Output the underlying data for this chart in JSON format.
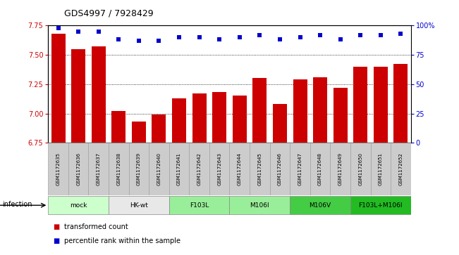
{
  "title": "GDS4997 / 7928429",
  "samples": [
    "GSM1172635",
    "GSM1172636",
    "GSM1172637",
    "GSM1172638",
    "GSM1172639",
    "GSM1172640",
    "GSM1172641",
    "GSM1172642",
    "GSM1172643",
    "GSM1172644",
    "GSM1172645",
    "GSM1172646",
    "GSM1172647",
    "GSM1172648",
    "GSM1172649",
    "GSM1172650",
    "GSM1172651",
    "GSM1172652"
  ],
  "bar_values": [
    7.68,
    7.55,
    7.57,
    7.02,
    6.93,
    6.99,
    7.13,
    7.17,
    7.18,
    7.15,
    7.3,
    7.08,
    7.29,
    7.31,
    7.22,
    7.4,
    7.4,
    7.42
  ],
  "percentile_values": [
    98,
    95,
    95,
    88,
    87,
    87,
    90,
    90,
    88,
    90,
    92,
    88,
    90,
    92,
    88,
    92,
    92,
    93
  ],
  "ylim_left": [
    6.75,
    7.75
  ],
  "ylim_right": [
    0,
    100
  ],
  "yticks_left": [
    6.75,
    7.0,
    7.25,
    7.5,
    7.75
  ],
  "yticks_right": [
    0,
    25,
    50,
    75,
    100
  ],
  "bar_color": "#cc0000",
  "dot_color": "#0000cc",
  "groups": [
    {
      "label": "mock",
      "start": 0,
      "end": 3,
      "color": "#ccffcc"
    },
    {
      "label": "HK-wt",
      "start": 3,
      "end": 6,
      "color": "#e8e8e8"
    },
    {
      "label": "F103L",
      "start": 6,
      "end": 9,
      "color": "#99ee99"
    },
    {
      "label": "M106I",
      "start": 9,
      "end": 12,
      "color": "#99ee99"
    },
    {
      "label": "M106V",
      "start": 12,
      "end": 15,
      "color": "#44cc44"
    },
    {
      "label": "F103L+M106I",
      "start": 15,
      "end": 18,
      "color": "#22bb22"
    }
  ],
  "infection_label": "infection",
  "legend_bar_label": "transformed count",
  "legend_dot_label": "percentile rank within the sample",
  "tick_label_color_left": "#cc0000",
  "tick_label_color_right": "#0000cc",
  "sample_box_color": "#cccccc",
  "sample_box_edge": "#999999"
}
